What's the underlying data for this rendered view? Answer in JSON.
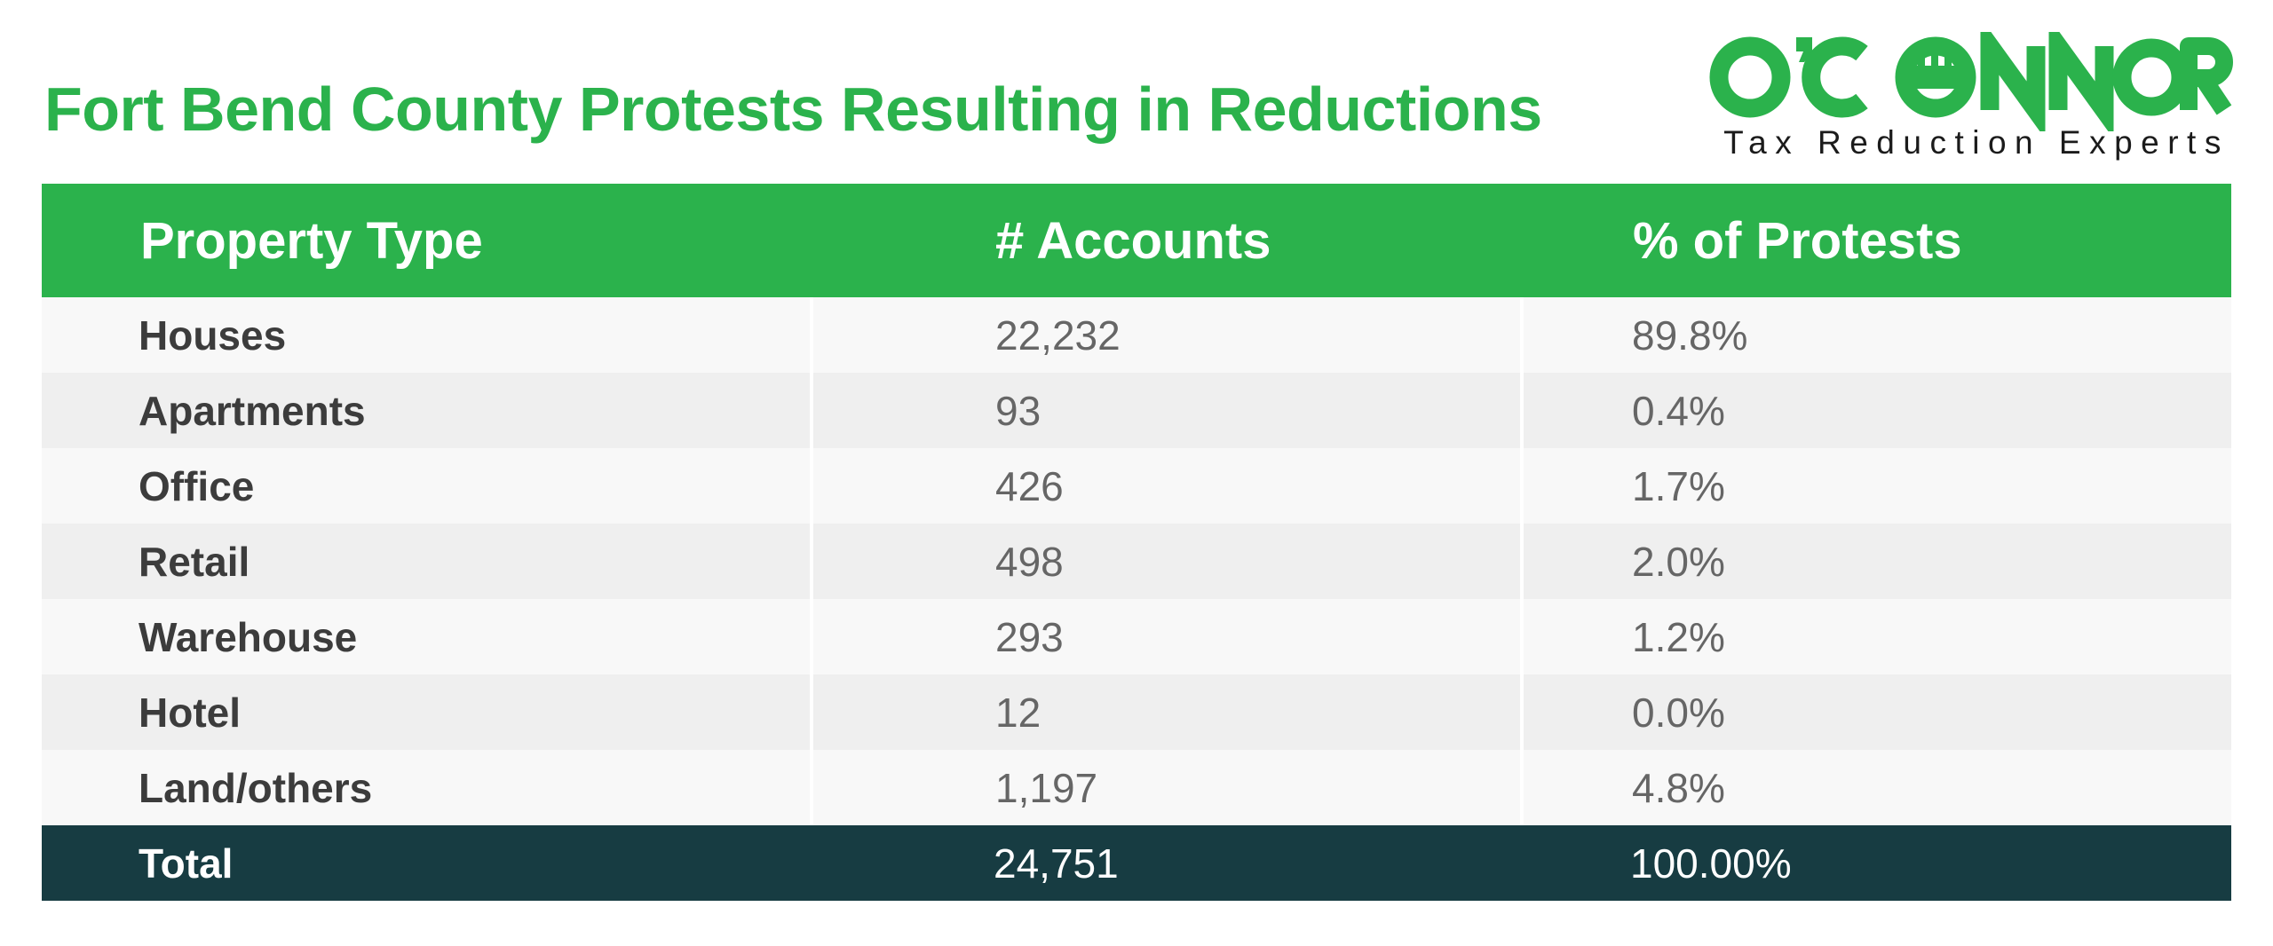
{
  "page": {
    "title": "Fort Bend County Protests Resulting in Reductions"
  },
  "logo": {
    "wordmark": "O'CONNOR",
    "tagline": "Tax Reduction Experts"
  },
  "colors": {
    "brand_green": "#2bb24c",
    "total_row": "#173c42",
    "row_light": "#f8f8f8",
    "row_dark": "#efefef"
  },
  "chart_data": {
    "type": "table",
    "title": "Fort Bend County Protests Resulting in Reductions",
    "columns": [
      "Property Type",
      "# Accounts",
      "% of Protests"
    ],
    "rows": [
      [
        "Houses",
        "22,232",
        "89.8%"
      ],
      [
        "Apartments",
        "93",
        "0.4%"
      ],
      [
        "Office",
        "426",
        "1.7%"
      ],
      [
        "Retail",
        "498",
        "2.0%"
      ],
      [
        "Warehouse",
        "293",
        "1.2%"
      ],
      [
        "Hotel",
        "12",
        "0.0%"
      ],
      [
        "Land/others",
        "1,197",
        "4.8%"
      ]
    ],
    "total": [
      "Total",
      "24,751",
      "100.00%"
    ]
  }
}
